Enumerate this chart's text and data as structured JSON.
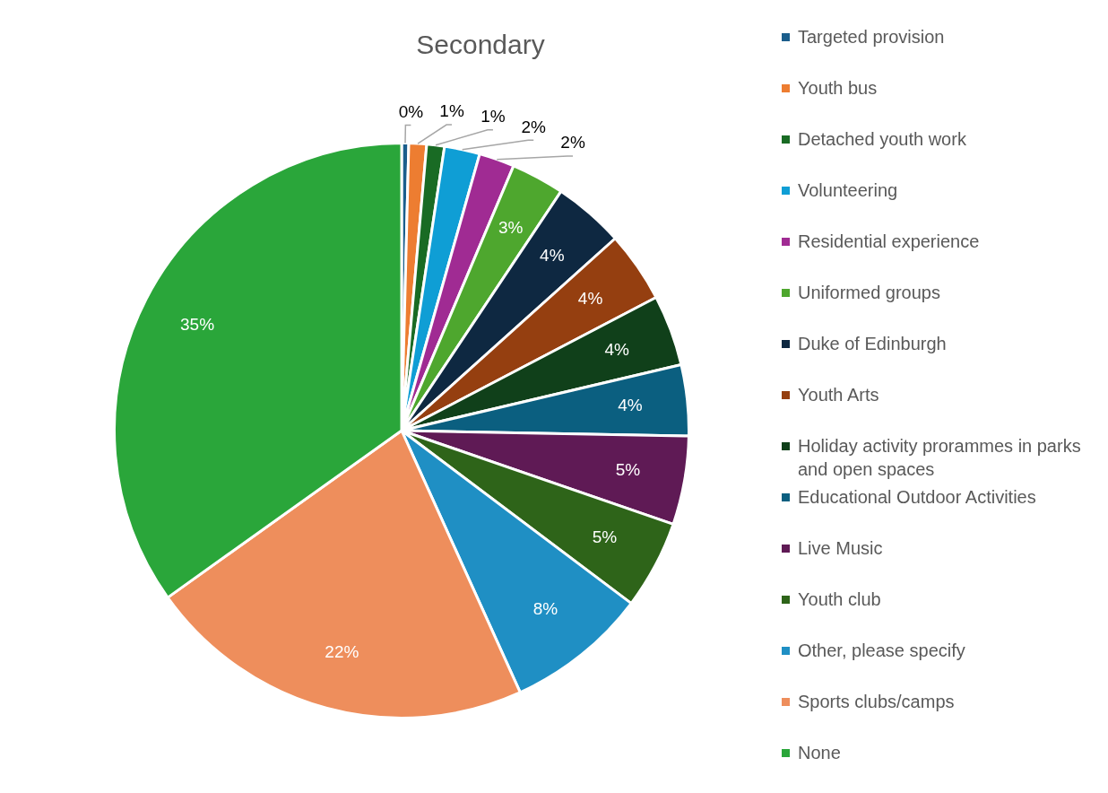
{
  "chart_data": {
    "type": "pie",
    "title": "Secondary",
    "categories": [
      "Targeted provision",
      "Youth bus",
      "Detached youth work",
      "Volunteering",
      "Residential experience",
      "Uniformed groups",
      "Duke of Edinburgh",
      "Youth Arts",
      "Holiday activity prorammes in parks and open spaces",
      "Educational Outdoor Activities",
      "Live Music",
      "Youth club",
      "Other, please specify",
      "Sports clubs/camps",
      "None"
    ],
    "values": [
      0.4,
      1,
      1,
      2,
      2,
      3,
      4,
      4,
      4,
      4,
      5,
      5,
      8,
      22,
      35
    ],
    "value_labels": [
      "0%",
      "1%",
      "1%",
      "2%",
      "2%",
      "3%",
      "4%",
      "4%",
      "4%",
      "4%",
      "5%",
      "5%",
      "8%",
      "22%",
      "35%"
    ],
    "colors": [
      "#1b5e8c",
      "#ed7d31",
      "#196b24",
      "#0f9ed5",
      "#a02b93",
      "#4ea72e",
      "#0e2841",
      "#953f10",
      "#10401a",
      "#0b5f80",
      "#5f1a55",
      "#2e6419",
      "#1f8fc4",
      "#ee8e5c",
      "#2aa63a"
    ],
    "data_labels": true,
    "legend": "right"
  }
}
